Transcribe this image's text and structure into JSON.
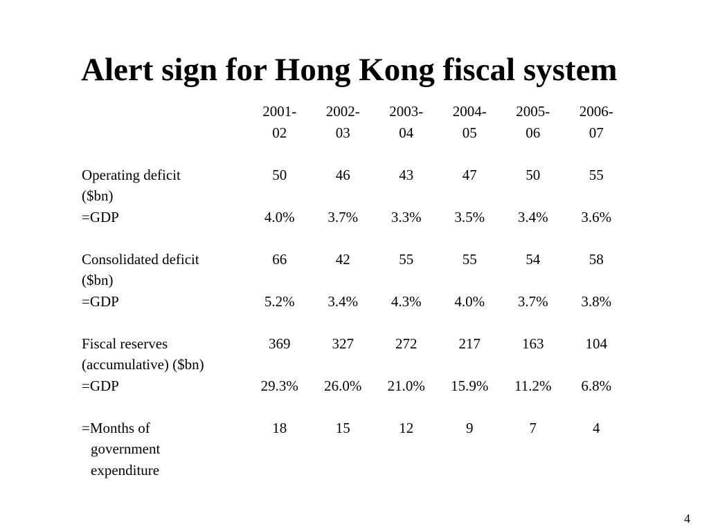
{
  "slide": {
    "title": "Alert sign for Hong Kong fiscal system",
    "page_number": "4"
  },
  "table": {
    "header": {
      "years_line1": [
        "2001-",
        "2002-",
        "2003-",
        "2004-",
        "2005-",
        "2006-"
      ],
      "years_line2": [
        "02",
        "03",
        "04",
        "05",
        "06",
        "07"
      ]
    },
    "rows": [
      {
        "label_line1": "Operating deficit",
        "label_line2": "($bn)",
        "values": [
          "50",
          "46",
          "43",
          "47",
          "50",
          "55"
        ],
        "pct_label": "=GDP",
        "pct_values": [
          "4.0%",
          "3.7%",
          "3.3%",
          "3.5%",
          "3.4%",
          "3.6%"
        ]
      },
      {
        "label_line1": "Consolidated deficit",
        "label_line2": "($bn)",
        "values": [
          "66",
          "42",
          "55",
          "55",
          "54",
          "58"
        ],
        "pct_label": "=GDP",
        "pct_values": [
          "5.2%",
          "3.4%",
          "4.3%",
          "4.0%",
          "3.7%",
          "3.8%"
        ]
      },
      {
        "label_line1": "Fiscal reserves",
        "label_line2": "(accumulative) ($bn)",
        "values": [
          "369",
          "327",
          "272",
          "217",
          "163",
          "104"
        ],
        "pct_label": "=GDP",
        "pct_values": [
          "29.3%",
          "26.0%",
          "21.0%",
          "15.9%",
          "11.2%",
          "6.8%"
        ]
      }
    ],
    "months_row": {
      "label_line1": "=Months of",
      "label_line2": "government",
      "label_line3": "expenditure",
      "values": [
        "18",
        "15",
        "12",
        "9",
        "7",
        "4"
      ]
    }
  }
}
